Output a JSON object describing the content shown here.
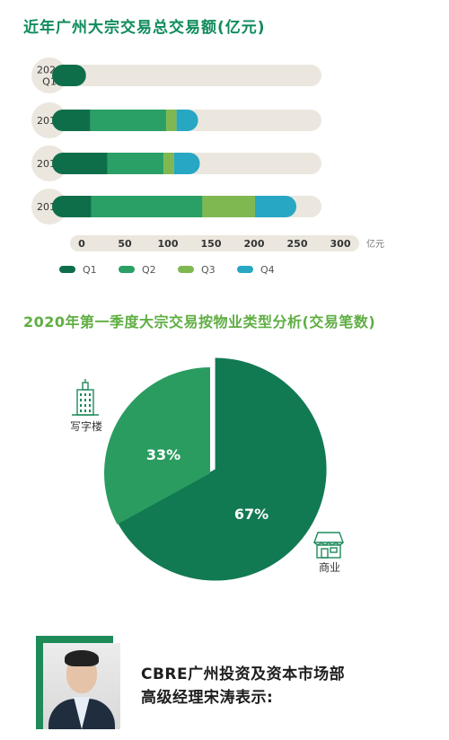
{
  "titles": {
    "bar_title": "近年广州大宗交易总交易额(亿元)",
    "pie_title": "2020年第一季度大宗交易按物业类型分析(交易笔数)"
  },
  "colors": {
    "Q1": "#0f6e4a",
    "Q2": "#2aa066",
    "Q3": "#7fb851",
    "Q4": "#27a7c4",
    "track": "#ebe7df",
    "pie_commercial": "#127a52",
    "pie_office": "#2a9c60"
  },
  "chart_data": [
    {
      "type": "bar",
      "orientation": "horizontal",
      "stacked": true,
      "title": "近年广州大宗交易总交易额(亿元)",
      "categories": [
        "2020\nQ1",
        "2019",
        "2018",
        "2017"
      ],
      "series": [
        {
          "name": "Q1",
          "values": [
            5,
            10,
            30,
            11
          ]
        },
        {
          "name": "Q2",
          "values": [
            0,
            88,
            65,
            129
          ]
        },
        {
          "name": "Q3",
          "values": [
            0,
            12,
            12,
            61
          ]
        },
        {
          "name": "Q4",
          "values": [
            0,
            25,
            30,
            48
          ]
        }
      ],
      "xlim": [
        0,
        300
      ],
      "xticks": [
        "0",
        "50",
        "100",
        "150",
        "200",
        "250",
        "300"
      ],
      "xunit": "亿元",
      "legend": "bottom"
    },
    {
      "type": "pie",
      "title": "2020年第一季度大宗交易按物业类型分析(交易笔数)",
      "slices": [
        {
          "label": "商业",
          "value": 67,
          "display": "67%",
          "icon": "shop-icon"
        },
        {
          "label": "写字楼",
          "value": 33,
          "display": "33%",
          "icon": "office-building-icon"
        }
      ]
    }
  ],
  "quote": {
    "line1": "CBRE广州投资及资本市场部",
    "line2": "高级经理宋涛表示:"
  }
}
